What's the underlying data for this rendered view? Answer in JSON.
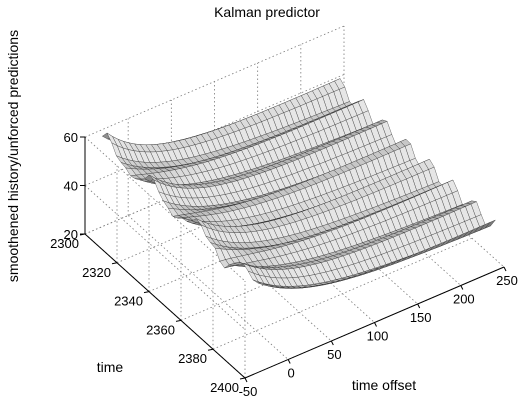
{
  "chart_data": {
    "type": "surface",
    "title": "Kalman predictor",
    "xlabel": "time offset",
    "ylabel": "time",
    "zlabel": "smoothened history/unforced predictions",
    "x_ticks": [
      -50,
      0,
      50,
      100,
      150,
      200,
      250
    ],
    "y_ticks": [
      2300,
      2320,
      2340,
      2360,
      2380,
      2400
    ],
    "z_ticks": [
      20,
      40,
      60
    ],
    "xlim": [
      -50,
      250
    ],
    "ylim": [
      2300,
      2400
    ],
    "zlim": [
      20,
      60
    ],
    "grid": true,
    "surface": {
      "x_range": [
        -30,
        240
      ],
      "y_range": [
        2300,
        2400
      ],
      "x_steps": 42,
      "y_steps": 34,
      "base_level_at_start": 55,
      "base_level_at_end": 38,
      "decay_scale": 60,
      "ripple_amplitude": 3.5,
      "ripple_period_time": 14,
      "start_bumps": [
        {
          "time": 2303,
          "height": 4
        },
        {
          "time": 2318,
          "height": -5
        },
        {
          "time": 2330,
          "height": 3
        },
        {
          "time": 2345,
          "height": -6
        },
        {
          "time": 2360,
          "height": 2
        },
        {
          "time": 2375,
          "height": -8
        },
        {
          "time": 2390,
          "height": 1
        }
      ]
    },
    "colors": {
      "face": "#bdbdbd",
      "edge": "#2a2a2a",
      "grid": "#7a7a7a",
      "axis": "#000000"
    }
  }
}
